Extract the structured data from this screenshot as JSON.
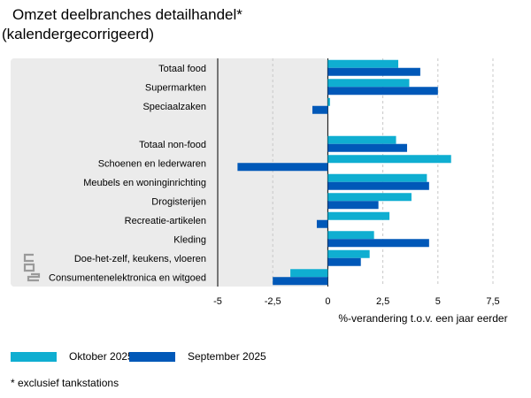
{
  "title": "Omzet deelbranches detailhandel*",
  "subtitle": "(kalendergecorrigeerd)",
  "footnote": "* exclusief tankstations",
  "colors": {
    "oktober": "#0faed1",
    "september": "#0058b8",
    "panel": "#ebebeb",
    "grid": "#c8c8c8",
    "axis": "#000000"
  },
  "logo_icon": "cbs-logo-icon",
  "chart_data": {
    "type": "bar",
    "orientation": "horizontal",
    "xlabel": "%-verandering t.o.v. een jaar eerder",
    "xlim": [
      -5,
      7.5
    ],
    "xticks": [
      -5,
      -2.5,
      0,
      2.5,
      5,
      7.5
    ],
    "xtick_labels": [
      "-5",
      "-2,5",
      "0",
      "2,5",
      "5",
      "7,5"
    ],
    "grid": true,
    "legend_position": "bottom-left",
    "categories": [
      "Totaal food",
      "Supermarkten",
      "Speciaalzaken",
      "",
      "Totaal non-food",
      "Schoenen en lederwaren",
      "Meubels en woninginrichting",
      "Drogisterijen",
      "Recreatie-artikelen",
      "Kleding",
      "Doe-het-zelf, keukens, vloeren",
      "Consumentenelektronica en witgoed"
    ],
    "series": [
      {
        "name": "Oktober 2025",
        "values": [
          3.2,
          3.7,
          0.1,
          null,
          3.1,
          5.6,
          4.5,
          3.8,
          2.8,
          2.1,
          1.9,
          -1.7
        ]
      },
      {
        "name": "September 2025",
        "values": [
          4.2,
          5.0,
          -0.7,
          null,
          3.6,
          -4.1,
          4.6,
          2.3,
          -0.5,
          4.6,
          1.5,
          -2.5
        ]
      }
    ]
  }
}
